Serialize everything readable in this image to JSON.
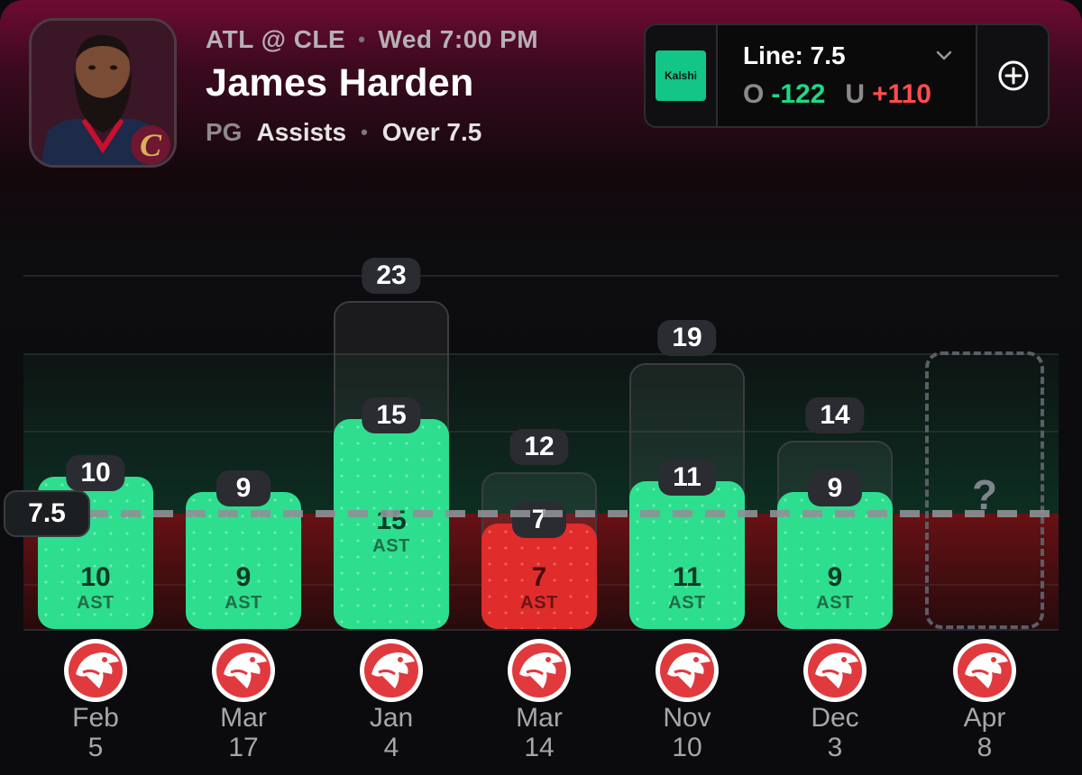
{
  "header": {
    "matchup": "ATL @ CLE",
    "game_time": "Wed 7:00 PM",
    "player_name": "James Harden",
    "position": "PG",
    "stat": "Assists",
    "pick": "Over 7.5",
    "avatar_icon": "player-headshot-icon"
  },
  "odds": {
    "book_logo_text": "Kalshi",
    "line_label": "Line: 7.5",
    "over_key": "O",
    "over_odds": "-122",
    "under_key": "U",
    "under_odds": "+110",
    "colors": {
      "over": "#1fd885",
      "under": "#ff4d4d",
      "book": "#13c587"
    }
  },
  "chart_data": {
    "type": "bar",
    "line": 7.5,
    "line_label": "7.5",
    "unit": "AST",
    "ylim": [
      0,
      25
    ],
    "games": [
      {
        "month": "Feb",
        "day": "5",
        "assists": 10,
        "assists_label": "10",
        "potential": null,
        "potential_label": "",
        "result": "over"
      },
      {
        "month": "Mar",
        "day": "17",
        "assists": 9,
        "assists_label": "9",
        "potential": null,
        "potential_label": "",
        "result": "over"
      },
      {
        "month": "Jan",
        "day": "4",
        "assists": 15,
        "assists_label": "15",
        "potential": 23,
        "potential_label": "23",
        "result": "over"
      },
      {
        "month": "Mar",
        "day": "14",
        "assists": 7,
        "assists_label": "7",
        "potential": 12,
        "potential_label": "12",
        "result": "under"
      },
      {
        "month": "Nov",
        "day": "10",
        "assists": 11,
        "assists_label": "11",
        "potential": 19,
        "potential_label": "19",
        "result": "over"
      },
      {
        "month": "Dec",
        "day": "3",
        "assists": 9,
        "assists_label": "9",
        "potential": 14,
        "potential_label": "14",
        "result": "over"
      }
    ],
    "upcoming": {
      "month": "Apr",
      "day": "8",
      "label": "?"
    },
    "opponent_logo": "atlanta-hawks-logo-icon",
    "colors": {
      "over": "#2dde8f",
      "under": "#e12c2c"
    }
  }
}
